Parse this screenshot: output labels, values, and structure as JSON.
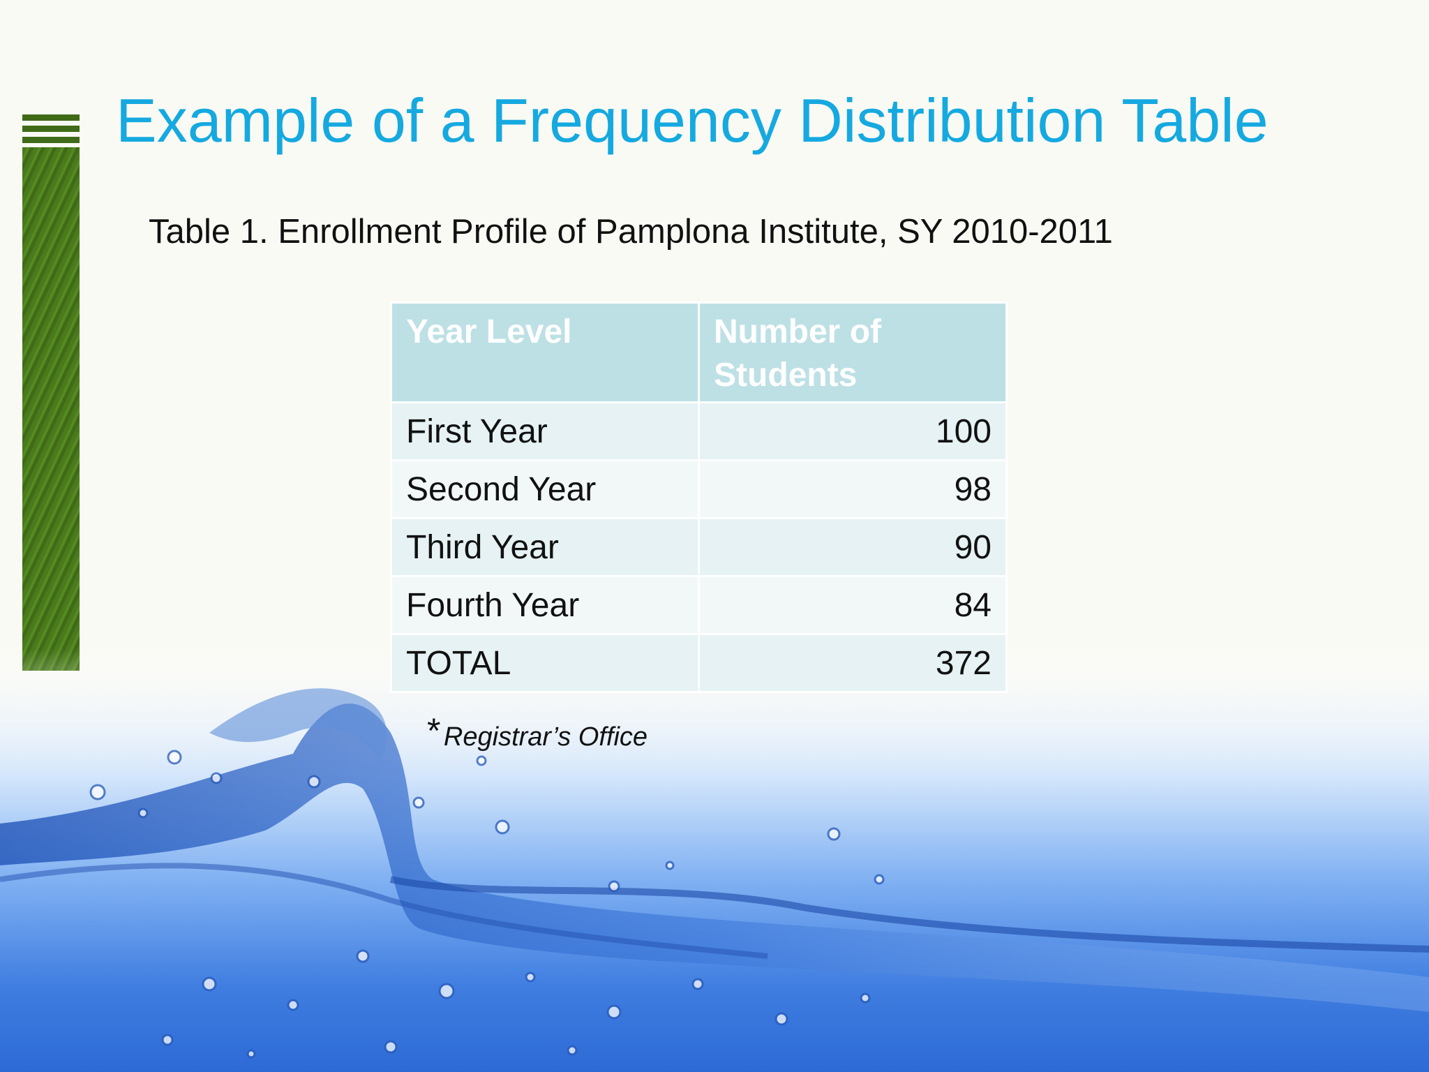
{
  "slide": {
    "title": "Example of a Frequency Distribution Table",
    "caption": "Table 1. Enrollment Profile of Pamplona Institute, SY 2010-2011"
  },
  "table": {
    "headers": [
      "Year Level",
      "Number of Students"
    ],
    "rows": [
      {
        "label": "First Year",
        "value": "100"
      },
      {
        "label": "Second Year",
        "value": "98"
      },
      {
        "label": "Third Year",
        "value": "90"
      },
      {
        "label": "Fourth Year",
        "value": "84"
      },
      {
        "label": "TOTAL",
        "value": "372"
      }
    ]
  },
  "footnote": {
    "marker": "*",
    "source": "Registrar’s Office"
  },
  "colors": {
    "title": "#15a9e0",
    "header_bg": "#bde0e5",
    "accent_bar": "#4a7a1c",
    "water": "#2f6fd8"
  }
}
